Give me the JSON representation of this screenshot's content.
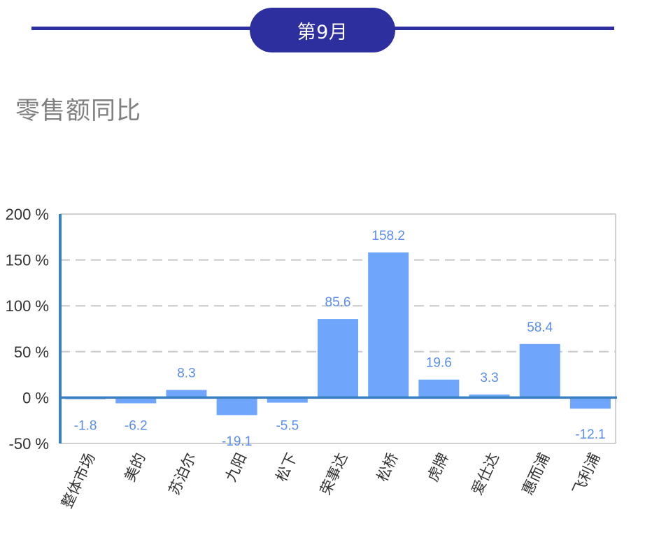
{
  "header": {
    "month_label": "第9月",
    "accent_color": "#2d2f9e"
  },
  "section": {
    "title": "零售额同比"
  },
  "chart_data": {
    "type": "bar",
    "title": "零售额同比",
    "xlabel": "",
    "ylabel": "",
    "ylim": [
      -50,
      200
    ],
    "yticks": [
      -50,
      0,
      50,
      100,
      150,
      200
    ],
    "ytick_labels": [
      "-50 %",
      "0 %",
      "50 %",
      "100 %",
      "150 %",
      "200 %"
    ],
    "grid": "dashed horizontal",
    "legend": "none",
    "bar_color": "#6fa6fc",
    "label_color": "#5b8def",
    "axis_color": "#3a7fbf",
    "categories": [
      "整体市场",
      "美的",
      "苏泊尔",
      "九阳",
      "松下",
      "荣事达",
      "松桥",
      "虎牌",
      "爱仕达",
      "惠而浦",
      "飞利浦"
    ],
    "values": [
      -1.8,
      -6.2,
      8.3,
      -19.1,
      -5.5,
      85.6,
      158.2,
      19.6,
      3.3,
      58.4,
      -12.1
    ],
    "value_labels": [
      "-1.8",
      "-6.2",
      "8.3",
      "-19.1",
      "-5.5",
      "85.6",
      "158.2",
      "19.6",
      "3.3",
      "58.4",
      "-12.1"
    ]
  }
}
